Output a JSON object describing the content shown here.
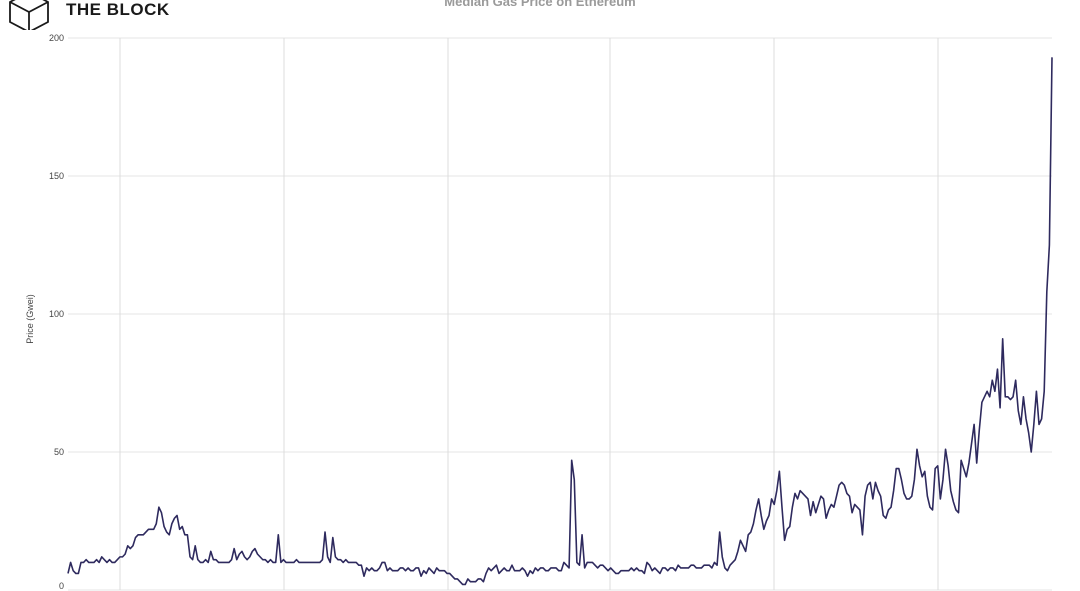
{
  "brand": {
    "name": "THE BLOCK",
    "icon": "the-block-cube-logo-icon"
  },
  "chart_data": {
    "type": "line",
    "title": "Median Gas Price on Ethereum",
    "ylabel": "Price (Gwei)",
    "xlabel": "",
    "ylim": [
      0,
      200
    ],
    "yticks": [
      0,
      50,
      100,
      150,
      200
    ],
    "grid": true,
    "line_color": "#2e2a5e",
    "series": [
      {
        "values": [
          6,
          10,
          7,
          6,
          6,
          10,
          10,
          11,
          10,
          10,
          10,
          11,
          10,
          12,
          11,
          10,
          11,
          10,
          10,
          11,
          12,
          12,
          13,
          16,
          15,
          16,
          19,
          20,
          20,
          20,
          21,
          22,
          22,
          22,
          24,
          30,
          28,
          23,
          21,
          20,
          24,
          26,
          27,
          22,
          23,
          20,
          20,
          12,
          11,
          16,
          11,
          10,
          10,
          11,
          10,
          14,
          11,
          11,
          10,
          10,
          10,
          10,
          10,
          11,
          15,
          11,
          13,
          14,
          12,
          11,
          12,
          14,
          15,
          13,
          12,
          11,
          11,
          10,
          11,
          10,
          10,
          20,
          10,
          11,
          10,
          10,
          10,
          10,
          11,
          10,
          10,
          10,
          10,
          10,
          10,
          10,
          10,
          10,
          11,
          21,
          12,
          10,
          19,
          12,
          11,
          11,
          10,
          11,
          10,
          10,
          10,
          10,
          9,
          9,
          5,
          8,
          7,
          8,
          7,
          7,
          8,
          10,
          10,
          7,
          8,
          7,
          7,
          7,
          8,
          8,
          7,
          8,
          7,
          7,
          8,
          8,
          5,
          7,
          6,
          8,
          7,
          6,
          8,
          7,
          7,
          7,
          6,
          6,
          5,
          4,
          4,
          3,
          2,
          2,
          4,
          3,
          3,
          3,
          4,
          4,
          3,
          6,
          8,
          7,
          8,
          9,
          6,
          7,
          8,
          7,
          7,
          9,
          7,
          7,
          7,
          8,
          7,
          5,
          7,
          6,
          8,
          7,
          8,
          8,
          7,
          7,
          8,
          8,
          8,
          7,
          7,
          10,
          9,
          8,
          47,
          40,
          10,
          9,
          20,
          8,
          10,
          10,
          10,
          9,
          8,
          9,
          9,
          8,
          7,
          8,
          7,
          6,
          6,
          7,
          7,
          7,
          7,
          8,
          7,
          8,
          7,
          7,
          6,
          10,
          9,
          7,
          8,
          7,
          6,
          8,
          8,
          7,
          8,
          8,
          7,
          9,
          8,
          8,
          8,
          8,
          9,
          9,
          8,
          8,
          8,
          9,
          9,
          9,
          8,
          10,
          9,
          21,
          12,
          8,
          7,
          9,
          10,
          11,
          14,
          18,
          16,
          14,
          20,
          21,
          24,
          29,
          33,
          27,
          22,
          25,
          27,
          33,
          31,
          36,
          43,
          30,
          18,
          22,
          23,
          30,
          35,
          33,
          36,
          35,
          34,
          33,
          27,
          32,
          28,
          31,
          34,
          33,
          26,
          29,
          31,
          30,
          34,
          38,
          39,
          38,
          35,
          34,
          28,
          31,
          30,
          29,
          20,
          34,
          38,
          39,
          33,
          39,
          36,
          34,
          27,
          26,
          29,
          30,
          36,
          44,
          44,
          40,
          35,
          33,
          33,
          34,
          40,
          51,
          45,
          41,
          43,
          34,
          30,
          29,
          44,
          45,
          33,
          40,
          51,
          45,
          36,
          32,
          29,
          28,
          47,
          44,
          41,
          46,
          53,
          60,
          46,
          58,
          68,
          70,
          72,
          70,
          76,
          72,
          80,
          66,
          91,
          70,
          70,
          69,
          70,
          76,
          65,
          60,
          70,
          62,
          57,
          50,
          60,
          72,
          60,
          62,
          72,
          108,
          125,
          193
        ]
      }
    ]
  }
}
